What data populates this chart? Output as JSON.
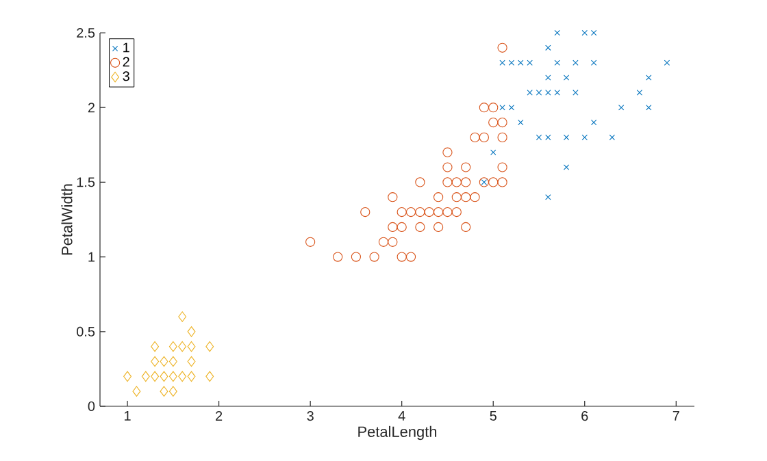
{
  "chart_data": {
    "type": "scatter",
    "xlabel": "PetalLength",
    "ylabel": "PetalWidth",
    "xlim": [
      0.7,
      7.2
    ],
    "ylim": [
      0,
      2.5
    ],
    "xticks": [
      1,
      2,
      3,
      4,
      5,
      6,
      7
    ],
    "yticks": [
      0,
      0.5,
      1,
      1.5,
      2,
      2.5
    ],
    "legend": "top left",
    "series": [
      {
        "name": "1",
        "color": "#0072bd",
        "marker": "cross",
        "x": [
          5.7,
          6.0,
          6.1,
          5.6,
          5.1,
          5.2,
          5.3,
          5.4,
          5.7,
          5.9,
          6.1,
          6.9,
          5.6,
          5.8,
          6.7,
          5.4,
          5.5,
          5.6,
          5.7,
          5.9,
          6.6,
          5.1,
          5.2,
          6.4,
          6.7,
          5.3,
          6.1,
          5.5,
          5.6,
          5.8,
          6.0,
          6.3,
          5.0,
          5.8,
          4.9,
          5.6
        ],
        "values": [
          2.5,
          2.5,
          2.5,
          2.4,
          2.3,
          2.3,
          2.3,
          2.3,
          2.3,
          2.3,
          2.3,
          2.3,
          2.2,
          2.2,
          2.2,
          2.1,
          2.1,
          2.1,
          2.1,
          2.1,
          2.1,
          2.0,
          2.0,
          2.0,
          2.0,
          1.9,
          1.9,
          1.8,
          1.8,
          1.8,
          1.8,
          1.8,
          1.7,
          1.6,
          1.5,
          1.4
        ]
      },
      {
        "name": "2",
        "color": "#d95319",
        "marker": "circle",
        "x": [
          5.1,
          4.9,
          5.0,
          5.0,
          5.1,
          4.8,
          4.9,
          5.1,
          4.5,
          4.5,
          4.7,
          5.1,
          4.2,
          4.5,
          4.6,
          4.7,
          4.9,
          5.0,
          5.1,
          3.9,
          4.4,
          4.6,
          4.7,
          4.8,
          3.6,
          4.0,
          4.1,
          4.2,
          4.3,
          4.4,
          4.5,
          4.6,
          3.9,
          4.0,
          4.2,
          4.4,
          4.7,
          3.0,
          3.8,
          3.9,
          3.3,
          3.5,
          3.7,
          4.0,
          4.1
        ],
        "values": [
          2.4,
          2.0,
          2.0,
          1.9,
          1.9,
          1.8,
          1.8,
          1.8,
          1.7,
          1.6,
          1.6,
          1.6,
          1.5,
          1.5,
          1.5,
          1.5,
          1.5,
          1.5,
          1.5,
          1.4,
          1.4,
          1.4,
          1.4,
          1.4,
          1.3,
          1.3,
          1.3,
          1.3,
          1.3,
          1.3,
          1.3,
          1.3,
          1.2,
          1.2,
          1.2,
          1.2,
          1.2,
          1.1,
          1.1,
          1.1,
          1.0,
          1.0,
          1.0,
          1.0,
          1.0
        ]
      },
      {
        "name": "3",
        "color": "#edb120",
        "marker": "diamond",
        "x": [
          1.0,
          1.1,
          1.2,
          1.3,
          1.3,
          1.3,
          1.4,
          1.4,
          1.4,
          1.5,
          1.5,
          1.5,
          1.5,
          1.6,
          1.6,
          1.6,
          1.7,
          1.7,
          1.7,
          1.7,
          1.9,
          1.9
        ],
        "values": [
          0.2,
          0.1,
          0.2,
          0.4,
          0.3,
          0.2,
          0.3,
          0.2,
          0.1,
          0.4,
          0.3,
          0.2,
          0.1,
          0.6,
          0.4,
          0.2,
          0.5,
          0.4,
          0.3,
          0.2,
          0.4,
          0.2
        ]
      }
    ]
  }
}
